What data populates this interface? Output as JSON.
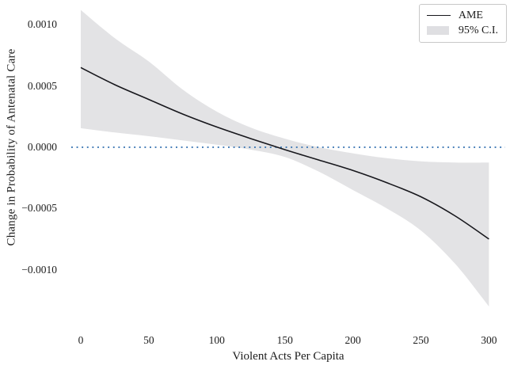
{
  "figure_background": "#ffffff",
  "chart_data": {
    "type": "line",
    "title": "",
    "xlabel": "Violent Acts Per Capita",
    "ylabel": "Change in Probability of Antenatal Care",
    "grid": false,
    "xlim": [
      -7,
      312
    ],
    "ylim": [
      -0.00141,
      0.00115
    ],
    "x_ticks": {
      "values": [
        0,
        50,
        100,
        150,
        200,
        250,
        300
      ],
      "labels": [
        "0",
        "50",
        "100",
        "150",
        "200",
        "250",
        "300"
      ]
    },
    "y_ticks": {
      "values": [
        0.001,
        0.0005,
        0.0,
        -0.0005,
        -0.001
      ],
      "labels": [
        "0.0010",
        "0.0005",
        "0.0000",
        "−0.0005",
        "−0.0010"
      ]
    },
    "zero_line": {
      "value": 0,
      "style": "dotted",
      "color": "#3a76b3"
    },
    "x": [
      0,
      25,
      50,
      75,
      100,
      125,
      150,
      175,
      200,
      225,
      250,
      275,
      300
    ],
    "series": [
      {
        "name": "AME",
        "type": "line",
        "color": "#17171c",
        "values": [
          0.00065,
          0.00051,
          0.00039,
          0.00027,
          0.000165,
          7e-05,
          -2e-05,
          -0.000105,
          -0.00019,
          -0.00029,
          -0.000405,
          -0.00056,
          -0.00075
        ]
      },
      {
        "name": "95% C.I.",
        "type": "band",
        "color": "#e3e3e5",
        "upper": [
          0.00112,
          0.00089,
          0.0007,
          0.00047,
          0.00029,
          0.00016,
          7e-05,
          0.0,
          -5e-05,
          -9e-05,
          -0.000115,
          -0.000125,
          -0.000125
        ],
        "lower": [
          0.000155,
          0.00012,
          9e-05,
          5.5e-05,
          2e-05,
          -2e-05,
          -8e-05,
          -0.0002,
          -0.00035,
          -0.0005,
          -0.00068,
          -0.00095,
          -0.0013
        ]
      }
    ],
    "legend": {
      "position": "upper right",
      "entries": [
        {
          "label": "AME",
          "swatch": "line",
          "color": "#17171c"
        },
        {
          "label": "95% C.I.",
          "swatch": "patch",
          "color": "#dfdfe2"
        }
      ]
    }
  }
}
